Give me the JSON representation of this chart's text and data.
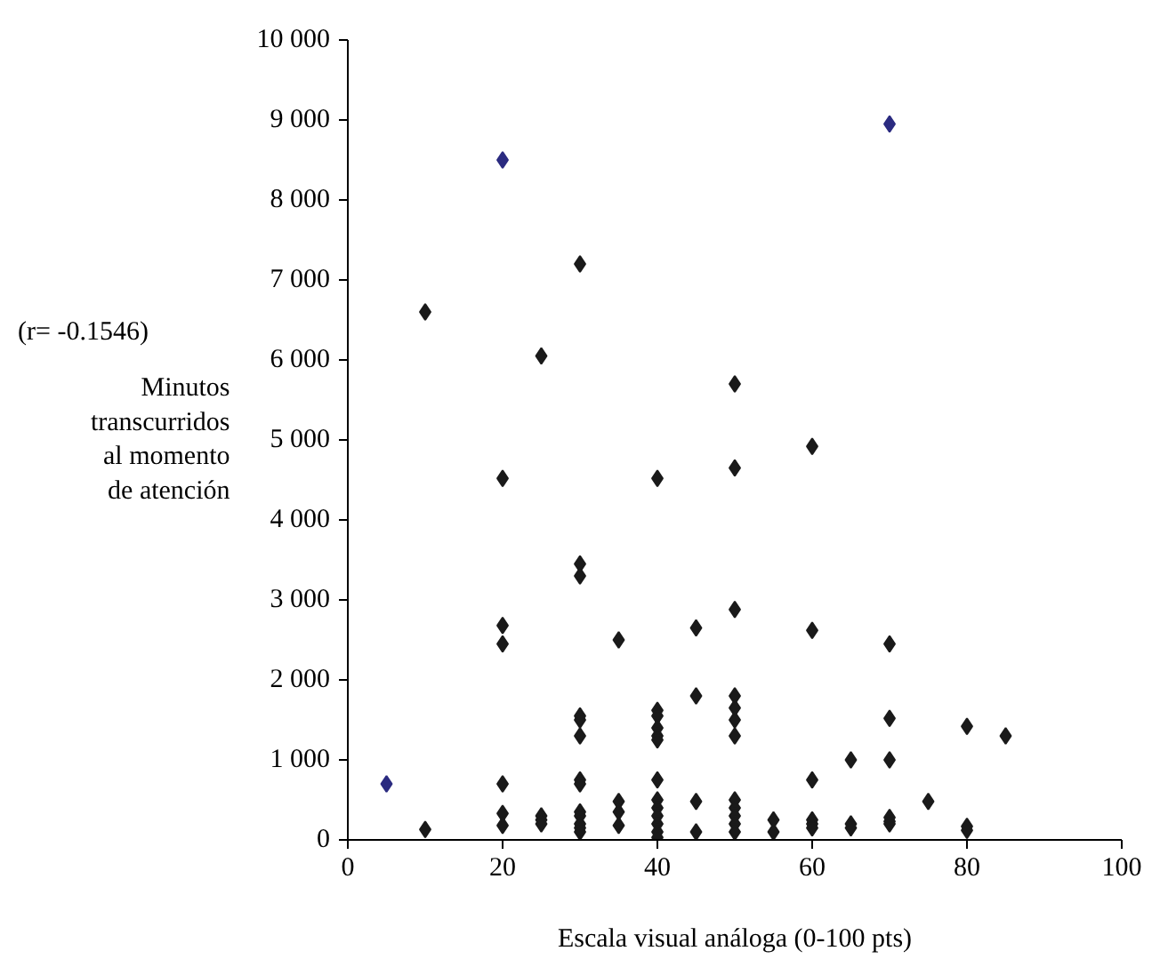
{
  "chart_data": {
    "type": "scatter",
    "xlabel": "Escala visual análoga (0-100 pts)",
    "ylabel": "Minutos\ntranscurridos\nal momento\nde atención",
    "annotations": [
      "(r= -0.1546)"
    ],
    "xlim": [
      0,
      100
    ],
    "xticks": [
      0,
      20,
      40,
      60,
      80,
      100
    ],
    "ylim": [
      0,
      10000
    ],
    "yticks": [
      {
        "value": 0,
        "label": "0"
      },
      {
        "value": 1000,
        "label": "1 000"
      },
      {
        "value": 2000,
        "label": "2 000"
      },
      {
        "value": 3000,
        "label": "3 000"
      },
      {
        "value": 4000,
        "label": "4 000"
      },
      {
        "value": 5000,
        "label": "5 000"
      },
      {
        "value": 6000,
        "label": "6 000"
      },
      {
        "value": 7000,
        "label": "7 000"
      },
      {
        "value": 8000,
        "label": "8 000"
      },
      {
        "value": 9000,
        "label": "9 000"
      },
      {
        "value": 10000,
        "label": "10 000"
      }
    ],
    "grid": false,
    "marker": "diamond",
    "series": [
      {
        "color": "#1a1a1a",
        "x": [
          10,
          10,
          20,
          20,
          20,
          20,
          20,
          20,
          25,
          25,
          25,
          25,
          30,
          30,
          30,
          30,
          30,
          30,
          30,
          30,
          30,
          30,
          30,
          30,
          30,
          35,
          35,
          35,
          35,
          40,
          40,
          40,
          40,
          40,
          40,
          40,
          40,
          40,
          40,
          40,
          40,
          40,
          45,
          45,
          45,
          45,
          50,
          50,
          50,
          50,
          50,
          50,
          50,
          50,
          50,
          50,
          50,
          50,
          55,
          55,
          60,
          60,
          60,
          60,
          60,
          60,
          65,
          65,
          65,
          70,
          70,
          70,
          70,
          70,
          70,
          75,
          80,
          80,
          80,
          85
        ],
        "values": [
          6600,
          130,
          4520,
          2680,
          2450,
          700,
          330,
          180,
          6050,
          300,
          250,
          200,
          7200,
          3450,
          3300,
          1550,
          1500,
          1300,
          750,
          700,
          350,
          300,
          200,
          150,
          100,
          2500,
          480,
          350,
          180,
          4520,
          1620,
          1550,
          1400,
          1300,
          1250,
          750,
          500,
          400,
          300,
          200,
          100,
          30,
          2650,
          1800,
          480,
          100,
          5700,
          4650,
          2880,
          1800,
          1650,
          1500,
          1300,
          500,
          400,
          300,
          200,
          100,
          250,
          100,
          4920,
          2620,
          750,
          250,
          200,
          150,
          1000,
          200,
          150,
          2450,
          1520,
          1000,
          280,
          230,
          200,
          480,
          1420,
          170,
          120,
          1300
        ]
      },
      {
        "color": "#2b2b80",
        "x": [
          5,
          20,
          70
        ],
        "values": [
          700,
          8500,
          8950
        ]
      }
    ]
  }
}
